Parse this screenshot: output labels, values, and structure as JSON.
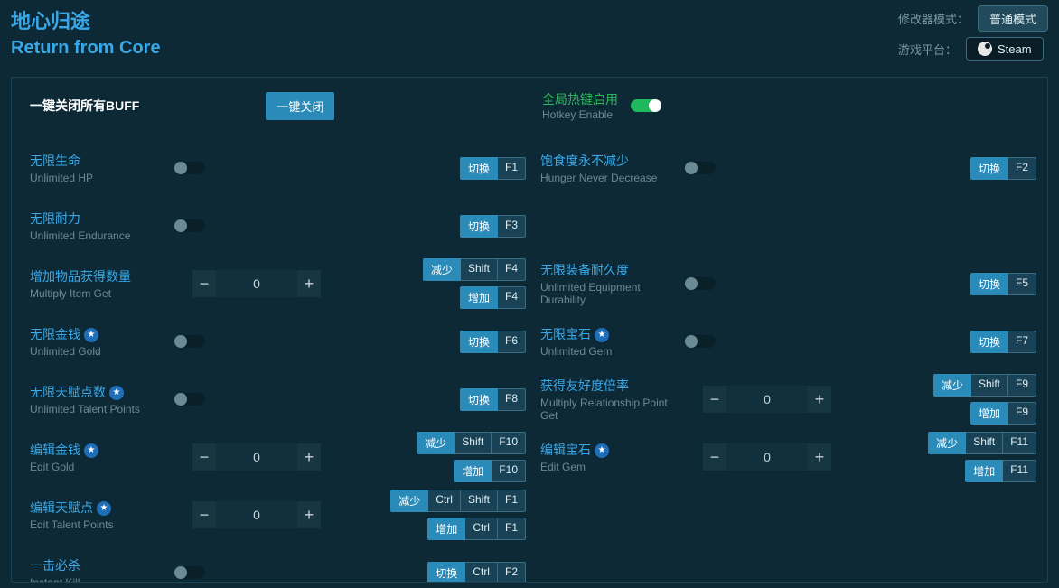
{
  "header": {
    "title_cn": "地心归途",
    "title_en": "Return from Core",
    "mode_label": "修改器模式：",
    "mode_value": "普通模式",
    "platform_label": "游戏平台：",
    "platform_value": "Steam"
  },
  "panel": {
    "close_all_label": "一键关闭所有BUFF",
    "close_all_btn": "一键关闭",
    "hotkey_enable_cn": "全局热键启用",
    "hotkey_enable_en": "Hotkey Enable",
    "hotkey_enable_on": true
  },
  "actions": {
    "toggle": "切换",
    "decrease": "减少",
    "increase": "增加"
  },
  "colors": {
    "background": "#0d2936",
    "accent": "#39a8e8",
    "accent_btn": "#2a8bb8",
    "text_muted": "#6e8994",
    "panel_border": "#1a4256",
    "key_bg": "#1a4256",
    "key_border": "#3a6d84",
    "toggle_on": "#1fb85c",
    "star_bg": "#1e6eb8"
  },
  "left": [
    {
      "cn": "无限生命",
      "en": "Unlimited HP",
      "type": "toggle",
      "keys": [
        [
          "切换",
          "F1"
        ]
      ]
    },
    {
      "cn": "无限耐力",
      "en": "Unlimited Endurance",
      "type": "toggle",
      "keys": [
        [
          "切换",
          "F3"
        ]
      ]
    },
    {
      "cn": "增加物品获得数量",
      "en": "Multiply Item Get",
      "type": "stepper",
      "value": "0",
      "keys": [
        [
          "减少",
          "Shift",
          "F4"
        ],
        [
          "增加",
          "F4"
        ]
      ]
    },
    {
      "cn": "无限金钱",
      "en": "Unlimited Gold",
      "star": true,
      "type": "toggle",
      "keys": [
        [
          "切换",
          "F6"
        ]
      ]
    },
    {
      "cn": "无限天赋点数",
      "en": "Unlimited Talent Points",
      "star": true,
      "type": "toggle",
      "keys": [
        [
          "切换",
          "F8"
        ]
      ]
    },
    {
      "cn": "编辑金钱",
      "en": "Edit Gold",
      "star": true,
      "type": "stepper",
      "value": "0",
      "keys": [
        [
          "减少",
          "Shift",
          "F10"
        ],
        [
          "增加",
          "F10"
        ]
      ]
    },
    {
      "cn": "编辑天赋点",
      "en": "Edit Talent Points",
      "star": true,
      "type": "stepper",
      "value": "0",
      "keys": [
        [
          "减少",
          "Ctrl",
          "Shift",
          "F1"
        ],
        [
          "增加",
          "Ctrl",
          "F1"
        ]
      ]
    },
    {
      "cn": "一击必杀",
      "en": "Instant Kill",
      "type": "toggle",
      "keys": [
        [
          "切换",
          "Ctrl",
          "F2"
        ]
      ]
    }
  ],
  "right": [
    {
      "cn": "饱食度永不减少",
      "en": "Hunger Never Decrease",
      "type": "toggle",
      "keys": [
        [
          "切换",
          "F2"
        ]
      ]
    },
    {
      "spacer": true
    },
    {
      "cn": "无限装备耐久度",
      "en": "Unlimited Equipment Durability",
      "type": "toggle",
      "keys": [
        [
          "切换",
          "F5"
        ]
      ]
    },
    {
      "cn": "无限宝石",
      "en": "Unlimited Gem",
      "star": true,
      "type": "toggle",
      "keys": [
        [
          "切换",
          "F7"
        ]
      ]
    },
    {
      "cn": "获得友好度倍率",
      "en": "Multiply Relationship Point Get",
      "type": "stepper",
      "value": "0",
      "keys": [
        [
          "减少",
          "Shift",
          "F9"
        ],
        [
          "增加",
          "F9"
        ]
      ]
    },
    {
      "cn": "编辑宝石",
      "en": "Edit Gem",
      "star": true,
      "type": "stepper",
      "value": "0",
      "keys": [
        [
          "减少",
          "Shift",
          "F11"
        ],
        [
          "增加",
          "F11"
        ]
      ]
    }
  ]
}
